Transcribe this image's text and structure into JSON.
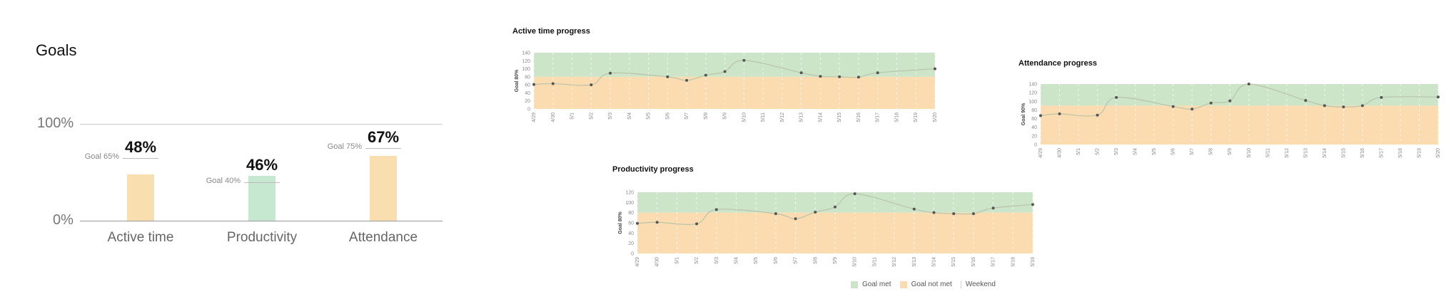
{
  "goals": {
    "title": "Goals",
    "y_ticks": [
      "100%",
      "0%"
    ],
    "bars": [
      {
        "category": "Active time",
        "value": 48,
        "value_label": "48%",
        "goal": 65,
        "goal_label": "Goal 65%",
        "color": "#f9deb0"
      },
      {
        "category": "Productivity",
        "value": 46,
        "value_label": "46%",
        "goal": 40,
        "goal_label": "Goal 40%",
        "color": "#c6e8d0"
      },
      {
        "category": "Attendance",
        "value": 67,
        "value_label": "67%",
        "goal": 75,
        "goal_label": "Goal 75%",
        "color": "#f9deb0"
      }
    ]
  },
  "chart_data": [
    {
      "type": "line",
      "title": "Active time progress",
      "ylabel": "Goal 80%",
      "goal": 80,
      "ylim": [
        0,
        140
      ],
      "yticks": [
        0,
        20,
        40,
        60,
        80,
        100,
        120,
        140
      ],
      "categories": [
        "4/29",
        "4/30",
        "5/1",
        "5/2",
        "5/3",
        "5/4",
        "5/5",
        "5/6",
        "5/7",
        "5/8",
        "5/9",
        "5/10",
        "5/11",
        "5/12",
        "5/13",
        "5/14",
        "5/15",
        "5/16",
        "5/17",
        "5/18",
        "5/19",
        "5/20"
      ],
      "values": [
        61,
        63,
        null,
        60,
        89,
        null,
        null,
        80,
        71,
        84,
        93,
        121,
        null,
        null,
        90,
        81,
        80,
        79,
        90,
        null,
        null,
        100
      ]
    },
    {
      "type": "line",
      "title": "Attendance progress",
      "ylabel": "Goal 90%",
      "goal": 90,
      "ylim": [
        0,
        140
      ],
      "yticks": [
        0,
        20,
        40,
        60,
        80,
        100,
        120,
        140
      ],
      "categories": [
        "4/29",
        "4/30",
        "5/1",
        "5/2",
        "5/3",
        "5/4",
        "5/5",
        "5/6",
        "5/7",
        "5/8",
        "5/9",
        "5/10",
        "5/11",
        "5/12",
        "5/13",
        "5/14",
        "5/15",
        "5/16",
        "5/17",
        "5/18",
        "5/19",
        "5/20"
      ],
      "values": [
        67,
        71,
        null,
        68,
        109,
        null,
        null,
        88,
        82,
        96,
        101,
        140,
        null,
        null,
        102,
        90,
        87,
        90,
        109,
        null,
        null,
        110
      ]
    },
    {
      "type": "line",
      "title": "Productivity progress",
      "ylabel": "Goal 80%",
      "goal": 80,
      "ylim": [
        0,
        120
      ],
      "yticks": [
        0,
        20,
        40,
        60,
        80,
        100,
        120
      ],
      "categories": [
        "4/29",
        "4/30",
        "5/1",
        "5/2",
        "5/3",
        "5/4",
        "5/5",
        "5/6",
        "5/7",
        "5/8",
        "5/9",
        "5/10",
        "5/11",
        "5/12",
        "5/13",
        "5/14",
        "5/15",
        "5/16",
        "5/17",
        "5/18",
        "5/19"
      ],
      "values": [
        59,
        61,
        null,
        58,
        86,
        null,
        null,
        78,
        68,
        81,
        91,
        117,
        null,
        null,
        87,
        80,
        78,
        78,
        89,
        null,
        96
      ]
    }
  ],
  "legend": {
    "goal_met": "Goal met",
    "goal_not_met": "Goal not met",
    "weekend": "Weekend",
    "colors": {
      "goal_met": "#cce5c8",
      "goal_not_met": "#fadcb0",
      "line": "#b9c3a8",
      "point": "#555555"
    }
  }
}
